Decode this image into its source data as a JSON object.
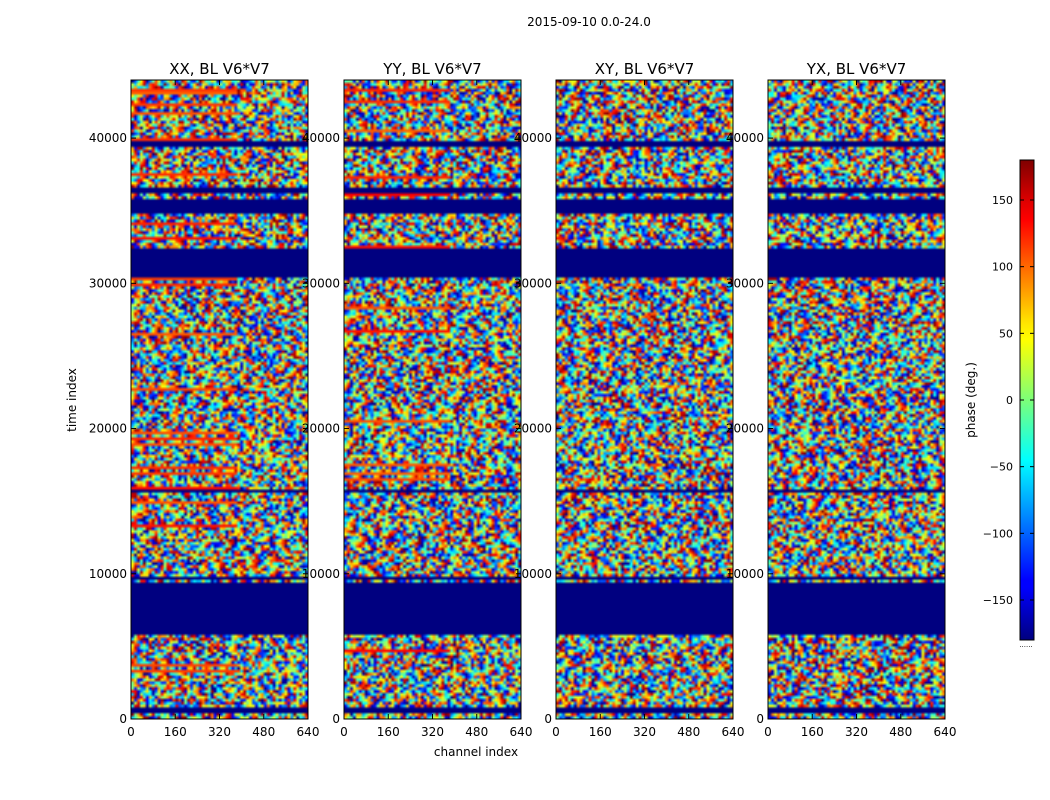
{
  "figure": {
    "suptitle": "2015-09-10 0.0-24.0",
    "colorbar_label": "phase (deg.)",
    "colorbar_footer": "......"
  },
  "chart_data": {
    "type": "heatmap",
    "colormap": "jet",
    "title": "2015-09-10 0.0-24.0",
    "xlabel": "channel index",
    "ylabel": "time index",
    "xlim": [
      0,
      640
    ],
    "ylim": [
      0,
      44000
    ],
    "x_ticks": [
      0,
      160,
      320,
      480,
      640
    ],
    "y_ticks": [
      0,
      10000,
      20000,
      30000,
      40000
    ],
    "colorbar": {
      "label": "phase (deg.)",
      "range": [
        -180,
        180
      ],
      "ticks": [
        -150,
        -100,
        -50,
        0,
        50,
        100,
        150
      ]
    },
    "panels": [
      {
        "title": "XX, BL V6*V7",
        "polarization": "XX",
        "baseline": "V6*V7"
      },
      {
        "title": "YY, BL V6*V7",
        "polarization": "YY",
        "baseline": "V6*V7"
      },
      {
        "title": "XY, BL V6*V7",
        "polarization": "XY",
        "baseline": "V6*V7"
      },
      {
        "title": "YX, BL V6*V7",
        "polarization": "YX",
        "baseline": "V6*V7"
      }
    ],
    "flagged_time_ranges": [
      [
        500,
        700
      ],
      [
        5900,
        9400
      ],
      [
        9700,
        9800
      ],
      [
        15600,
        15700
      ],
      [
        30500,
        32400
      ],
      [
        34800,
        35700
      ],
      [
        36200,
        36500
      ],
      [
        39500,
        39700
      ]
    ],
    "colors": {
      "flagged": "#00007f",
      "background": "#ffffff"
    }
  }
}
